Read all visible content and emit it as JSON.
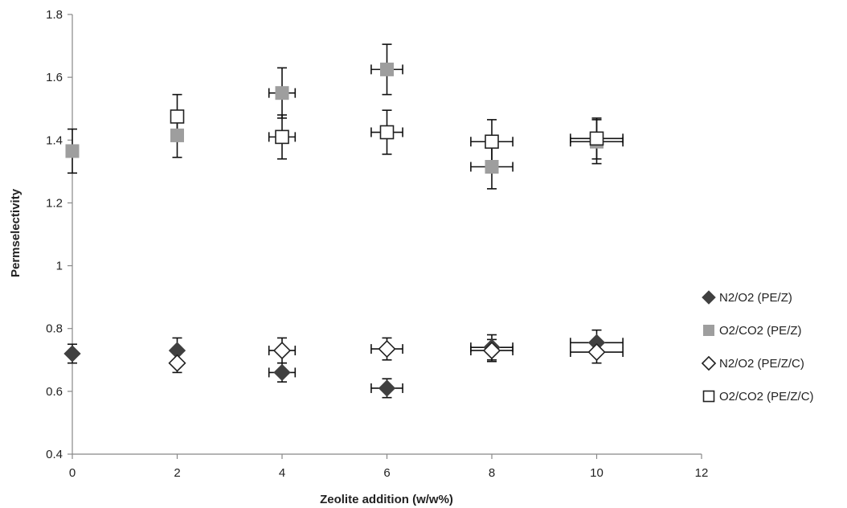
{
  "chart_data": {
    "type": "scatter",
    "xlabel": "Zeolite addition  (w/w%)",
    "ylabel": "Permselectivity",
    "xlim": [
      0,
      12
    ],
    "ylim": [
      0.4,
      1.8
    ],
    "xticks": [
      0,
      2,
      4,
      6,
      8,
      10,
      12
    ],
    "yticks": [
      0.4,
      0.6,
      0.8,
      1,
      1.2,
      1.4,
      1.6,
      1.8
    ],
    "ytick_labels": [
      "0.4",
      "0.6",
      "0.8",
      "1",
      "1.2",
      "1.4",
      "1.6",
      "1.8"
    ],
    "grid": false,
    "legend_position": "right",
    "series": [
      {
        "name": "N2/O2 (PE/Z)",
        "marker": "diamond-filled",
        "color": "#404040",
        "points": [
          {
            "x": 0,
            "y": 0.72,
            "yerr": 0.03,
            "xerr": 0
          },
          {
            "x": 2,
            "y": 0.73,
            "yerr": 0.04,
            "xerr": 0
          },
          {
            "x": 4,
            "y": 0.66,
            "yerr": 0.03,
            "xerr": 0.25
          },
          {
            "x": 6,
            "y": 0.61,
            "yerr": 0.03,
            "xerr": 0.3
          },
          {
            "x": 8,
            "y": 0.74,
            "yerr": 0.04,
            "xerr": 0.4
          },
          {
            "x": 10,
            "y": 0.755,
            "yerr": 0.04,
            "xerr": 0.5
          }
        ]
      },
      {
        "name": "O2/CO2 (PE/Z)",
        "marker": "square-filled",
        "color": "#9e9e9e",
        "points": [
          {
            "x": 0,
            "y": 1.365,
            "yerr": 0.07,
            "xerr": 0
          },
          {
            "x": 2,
            "y": 1.415,
            "yerr": 0.07,
            "xerr": 0
          },
          {
            "x": 4,
            "y": 1.55,
            "yerr": 0.08,
            "xerr": 0.25
          },
          {
            "x": 6,
            "y": 1.625,
            "yerr": 0.08,
            "xerr": 0.3
          },
          {
            "x": 8,
            "y": 1.315,
            "yerr": 0.07,
            "xerr": 0.4
          },
          {
            "x": 10,
            "y": 1.395,
            "yerr": 0.07,
            "xerr": 0.5
          }
        ]
      },
      {
        "name": "N2/O2 (PE/Z/C)",
        "marker": "diamond-open",
        "color": "#222222",
        "points": [
          {
            "x": 2,
            "y": 0.69,
            "yerr": 0.03,
            "xerr": 0
          },
          {
            "x": 4,
            "y": 0.73,
            "yerr": 0.04,
            "xerr": 0.25
          },
          {
            "x": 6,
            "y": 0.735,
            "yerr": 0.035,
            "xerr": 0.3
          },
          {
            "x": 8,
            "y": 0.73,
            "yerr": 0.035,
            "xerr": 0.4
          },
          {
            "x": 10,
            "y": 0.725,
            "yerr": 0.035,
            "xerr": 0.5
          }
        ]
      },
      {
        "name": "O2/CO2 (PE/Z/C)",
        "marker": "square-open",
        "color": "#222222",
        "points": [
          {
            "x": 2,
            "y": 1.475,
            "yerr": 0.07,
            "xerr": 0
          },
          {
            "x": 4,
            "y": 1.41,
            "yerr": 0.07,
            "xerr": 0.25
          },
          {
            "x": 6,
            "y": 1.425,
            "yerr": 0.07,
            "xerr": 0.3
          },
          {
            "x": 8,
            "y": 1.395,
            "yerr": 0.07,
            "xerr": 0.4
          },
          {
            "x": 10,
            "y": 1.405,
            "yerr": 0.065,
            "xerr": 0.5
          }
        ]
      }
    ]
  }
}
